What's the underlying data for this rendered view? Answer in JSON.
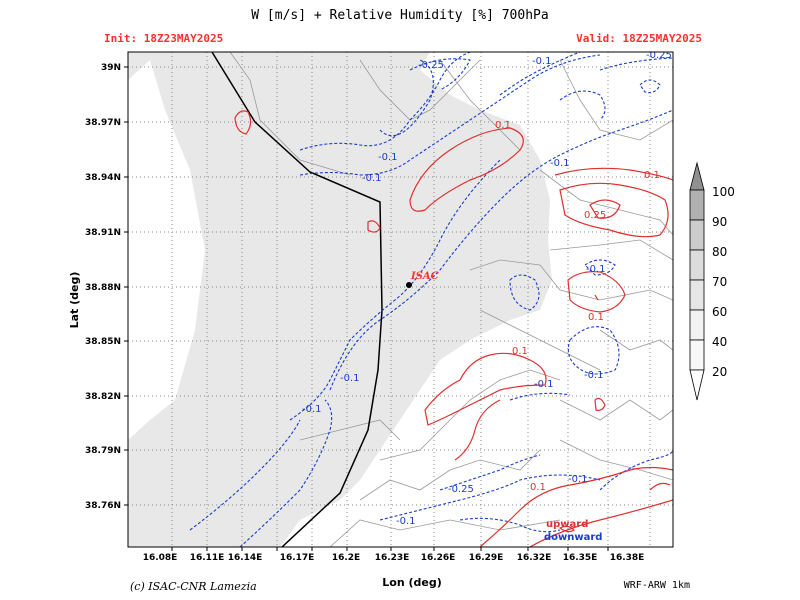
{
  "header": {
    "title": "W [m/s] + Relative Humidity [%] 700hPa",
    "init": "Init: 18Z23MAY2025",
    "valid": "Valid: 18Z25MAY2025"
  },
  "footer": {
    "credit": "(c) ISAC-CNR Lamezia",
    "model": "WRF-ARW 1km"
  },
  "axes": {
    "xlabel": "Lon (deg)",
    "ylabel": "Lat (deg)",
    "xticks": [
      "16.08E",
      "16.11E",
      "16.14E",
      "16.17E",
      "16.2E",
      "16.23E",
      "16.26E",
      "16.29E",
      "16.32E",
      "16.35E",
      "16.38E"
    ],
    "yticks": [
      "39N",
      "38.97N",
      "38.94N",
      "38.91N",
      "38.88N",
      "38.85N",
      "38.82N",
      "38.79N",
      "38.76N"
    ],
    "grid": true,
    "grid_style": "dotted"
  },
  "station": {
    "label": "ISAC",
    "lon": 16.235,
    "lat": 38.88
  },
  "contour_labels": {
    "downward": [
      "-0.25",
      "-0.1",
      "-0.1",
      "-0.1",
      "-0.1",
      "-0.1",
      "-0.1",
      "-0.1",
      "-0.1",
      "-0.25",
      "-0.1",
      "-0.1",
      "-0.25"
    ],
    "upward": [
      "0.1",
      "0.1",
      "0.25",
      "0.1",
      "0.1",
      "0.1"
    ]
  },
  "legend": {
    "up": "upward",
    "down": "downward"
  },
  "colorbar": {
    "levels": [
      "20",
      "40",
      "60",
      "70",
      "80",
      "90",
      "100"
    ],
    "colors": [
      "#ffffff",
      "#f2f2f2",
      "#e6e6e6",
      "#cccccc",
      "#b0b0b0",
      "#909090"
    ]
  },
  "colors": {
    "upward": "#e03030",
    "downward": "#1a3ccc",
    "humid_fill": "#e8e8e8"
  }
}
